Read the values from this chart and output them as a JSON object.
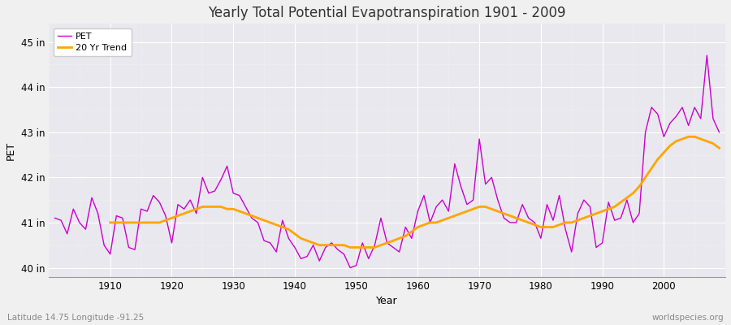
{
  "title": "Yearly Total Potential Evapotranspiration 1901 - 2009",
  "xlabel": "Year",
  "ylabel": "PET",
  "subtitle_left": "Latitude 14.75 Longitude -91.25",
  "subtitle_right": "worldspecies.org",
  "pet_label": "PET",
  "trend_label": "20 Yr Trend",
  "pet_color": "#CC00CC",
  "trend_color": "#FFA500",
  "bg_color": "#F0F0F0",
  "plot_bg_color": "#E8E8EE",
  "ylim": [
    39.8,
    45.4
  ],
  "yticks": [
    40,
    41,
    42,
    43,
    44,
    45
  ],
  "ytick_labels": [
    "40 in",
    "41 in",
    "42 in",
    "43 in",
    "44 in",
    "45 in"
  ],
  "xlim": [
    1900,
    2010
  ],
  "xticks": [
    1910,
    1920,
    1930,
    1940,
    1950,
    1960,
    1970,
    1980,
    1990,
    2000
  ],
  "years": [
    1901,
    1902,
    1903,
    1904,
    1905,
    1906,
    1907,
    1908,
    1909,
    1910,
    1911,
    1912,
    1913,
    1914,
    1915,
    1916,
    1917,
    1918,
    1919,
    1920,
    1921,
    1922,
    1923,
    1924,
    1925,
    1926,
    1927,
    1928,
    1929,
    1930,
    1931,
    1932,
    1933,
    1934,
    1935,
    1936,
    1937,
    1938,
    1939,
    1940,
    1941,
    1942,
    1943,
    1944,
    1945,
    1946,
    1947,
    1948,
    1949,
    1950,
    1951,
    1952,
    1953,
    1954,
    1955,
    1956,
    1957,
    1958,
    1959,
    1960,
    1961,
    1962,
    1963,
    1964,
    1965,
    1966,
    1967,
    1968,
    1969,
    1970,
    1971,
    1972,
    1973,
    1974,
    1975,
    1976,
    1977,
    1978,
    1979,
    1980,
    1981,
    1982,
    1983,
    1984,
    1985,
    1986,
    1987,
    1988,
    1989,
    1990,
    1991,
    1992,
    1993,
    1994,
    1995,
    1996,
    1997,
    1998,
    1999,
    2000,
    2001,
    2002,
    2003,
    2004,
    2005,
    2006,
    2007,
    2008,
    2009
  ],
  "pet_values": [
    41.1,
    41.05,
    40.75,
    41.3,
    41.0,
    40.85,
    41.55,
    41.2,
    40.5,
    40.3,
    41.15,
    41.1,
    40.45,
    40.4,
    41.3,
    41.25,
    41.6,
    41.45,
    41.15,
    40.55,
    41.4,
    41.3,
    41.5,
    41.2,
    42.0,
    41.65,
    41.7,
    41.95,
    42.25,
    41.65,
    41.6,
    41.35,
    41.1,
    41.0,
    40.6,
    40.55,
    40.35,
    41.05,
    40.65,
    40.45,
    40.2,
    40.25,
    40.5,
    40.15,
    40.45,
    40.55,
    40.4,
    40.3,
    40.0,
    40.05,
    40.55,
    40.2,
    40.5,
    41.1,
    40.55,
    40.45,
    40.35,
    40.9,
    40.65,
    41.25,
    41.6,
    41.0,
    41.35,
    41.5,
    41.25,
    42.3,
    41.8,
    41.4,
    41.5,
    42.85,
    41.85,
    42.0,
    41.5,
    41.1,
    41.0,
    41.0,
    41.4,
    41.1,
    41.0,
    40.65,
    41.4,
    41.05,
    41.6,
    40.85,
    40.35,
    41.2,
    41.5,
    41.35,
    40.45,
    40.55,
    41.45,
    41.05,
    41.1,
    41.5,
    41.0,
    41.2,
    43.0,
    43.55,
    43.4,
    42.9,
    43.2,
    43.35,
    43.55,
    43.15,
    43.55,
    43.3,
    44.7,
    43.3,
    43.0
  ],
  "trend_values": [
    null,
    null,
    null,
    null,
    null,
    null,
    null,
    null,
    null,
    41.0,
    41.0,
    41.0,
    41.0,
    41.0,
    41.0,
    41.0,
    41.0,
    41.0,
    41.05,
    41.1,
    41.15,
    41.2,
    41.25,
    41.3,
    41.35,
    41.35,
    41.35,
    41.35,
    41.3,
    41.3,
    41.25,
    41.2,
    41.15,
    41.1,
    41.05,
    41.0,
    40.95,
    40.9,
    40.85,
    40.75,
    40.65,
    40.6,
    40.55,
    40.5,
    40.5,
    40.5,
    40.5,
    40.5,
    40.45,
    40.45,
    40.45,
    40.45,
    40.45,
    40.5,
    40.55,
    40.6,
    40.65,
    40.7,
    40.8,
    40.9,
    40.95,
    41.0,
    41.0,
    41.05,
    41.1,
    41.15,
    41.2,
    41.25,
    41.3,
    41.35,
    41.35,
    41.3,
    41.25,
    41.2,
    41.15,
    41.1,
    41.05,
    41.0,
    40.95,
    40.9,
    40.9,
    40.9,
    40.95,
    41.0,
    41.0,
    41.05,
    41.1,
    41.15,
    41.2,
    41.25,
    41.3,
    41.35,
    41.45,
    41.55,
    41.65,
    41.8,
    42.0,
    42.2,
    42.4,
    42.55,
    42.7,
    42.8,
    42.85,
    42.9,
    42.9,
    42.85,
    42.8,
    42.75,
    42.65
  ]
}
